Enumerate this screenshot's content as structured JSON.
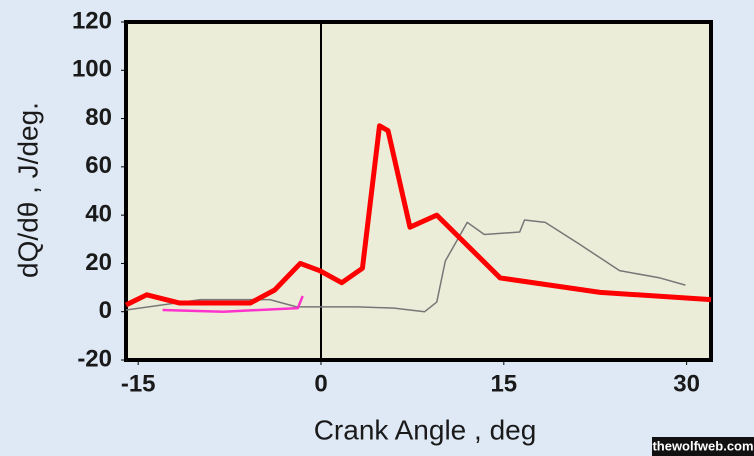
{
  "chart_data": {
    "type": "line",
    "x_label": "Crank Angle , deg",
    "y_label": "dQ/dθ , J/deg.",
    "watermark": "thewolfweb.com",
    "xlim": [
      -16,
      32
    ],
    "ylim": [
      -20,
      120
    ],
    "xticks": [
      -15,
      0,
      15,
      30
    ],
    "yticks": [
      -20,
      0,
      20,
      40,
      60,
      80,
      100,
      120
    ],
    "vline": 0,
    "series": [
      {
        "color": "#777777",
        "width": 1.5,
        "x": [
          -16,
          -9.9,
          -6.6,
          -4.2,
          -2,
          3,
          6,
          8.5,
          9.5,
          10.2,
          12,
          13.4,
          16.3,
          16.7,
          18.4,
          21.2,
          24.5,
          27.8,
          29.9
        ],
        "values": [
          0.7,
          5,
          5,
          5,
          2,
          2,
          1.5,
          0,
          4,
          21,
          37,
          32,
          33,
          38,
          37,
          28,
          17,
          14,
          11
        ]
      },
      {
        "color": "#ff33cc",
        "width": 2.5,
        "x": [
          -13,
          -8,
          -1.9,
          -1.5
        ],
        "values": [
          0.7,
          0,
          1.5,
          6.5
        ]
      },
      {
        "color": "#ff0000",
        "width": 5,
        "x": [
          -16,
          -14.3,
          -11.6,
          -5.8,
          -3.8,
          -1.7,
          -0.1,
          1.7,
          3.4,
          4.8,
          5.5,
          7.3,
          9.5,
          14.7,
          22.9,
          32
        ],
        "values": [
          2.8,
          7,
          3.6,
          3.6,
          9,
          20,
          17,
          12,
          18,
          77,
          75,
          35,
          40,
          14,
          8,
          5
        ]
      }
    ]
  }
}
